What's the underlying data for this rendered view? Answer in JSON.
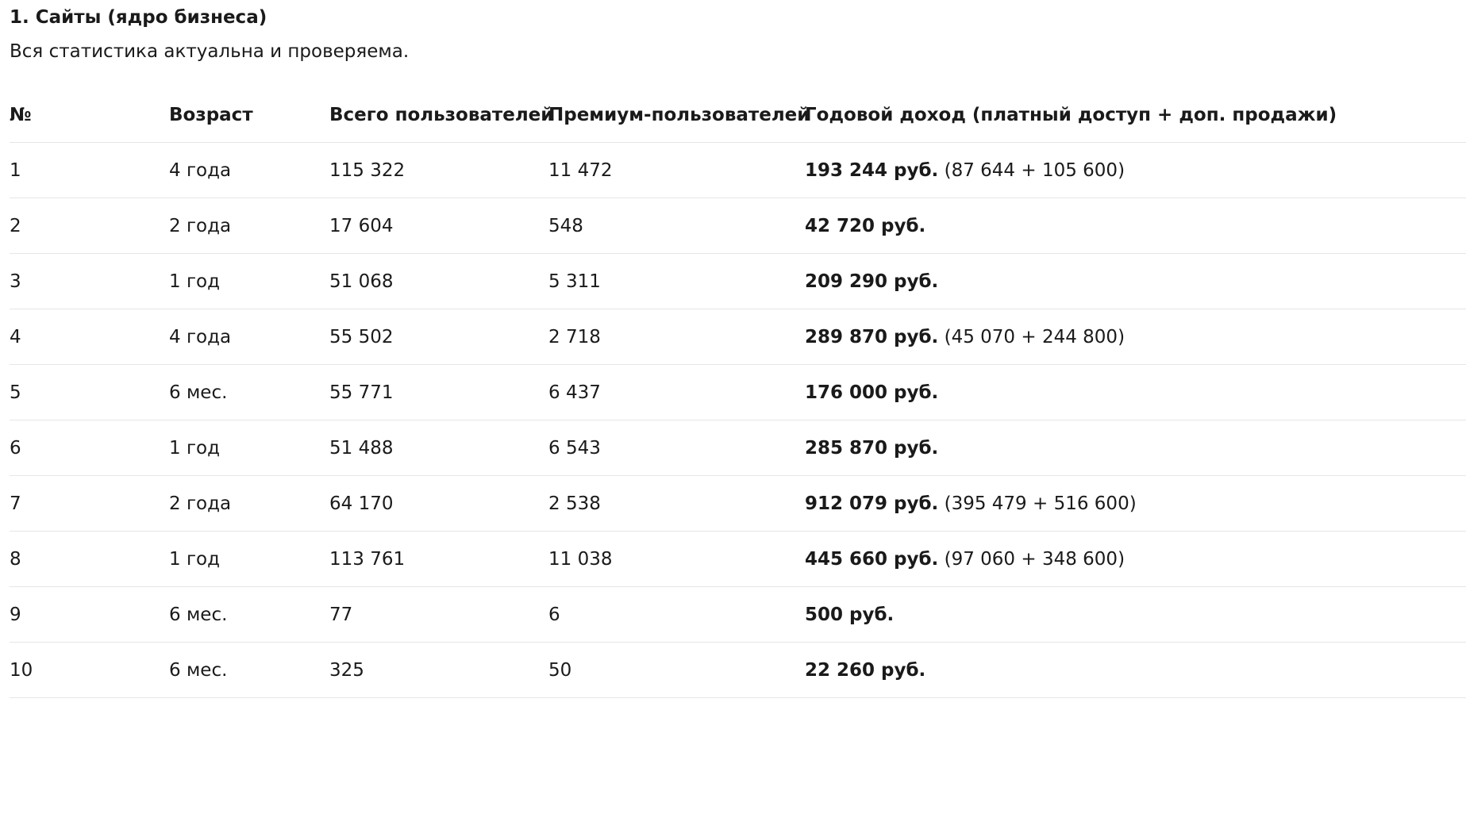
{
  "heading": "1. Сайты (ядро бизнеса)",
  "subtitle": "Вся статистика актуальна и проверяема.",
  "table": {
    "headers": [
      "№",
      "Возраст",
      "Всего пользователей",
      "Премиум-пользователей",
      "Годовой доход (платный доступ + доп. продажи)"
    ],
    "rows": [
      {
        "num": "1",
        "age": "4 года",
        "total": "115 322",
        "premium": "11 472",
        "revenue": "193 244 руб.",
        "breakdown": "(87 644 + 105 600)"
      },
      {
        "num": "2",
        "age": "2 года",
        "total": "17 604",
        "premium": "548",
        "revenue": "42 720 руб.",
        "breakdown": ""
      },
      {
        "num": "3",
        "age": "1 год",
        "total": "51 068",
        "premium": "5 311",
        "revenue": "209 290 руб.",
        "breakdown": ""
      },
      {
        "num": "4",
        "age": "4 года",
        "total": "55 502",
        "premium": "2 718",
        "revenue": "289 870 руб.",
        "breakdown": "(45 070 + 244 800)"
      },
      {
        "num": "5",
        "age": "6 мес.",
        "total": "55 771",
        "premium": "6 437",
        "revenue": "176 000 руб.",
        "breakdown": ""
      },
      {
        "num": "6",
        "age": "1 год",
        "total": "51 488",
        "premium": "6 543",
        "revenue": "285 870 руб.",
        "breakdown": ""
      },
      {
        "num": "7",
        "age": "2 года",
        "total": "64 170",
        "premium": "2 538",
        "revenue": "912 079 руб.",
        "breakdown": "(395 479 + 516 600)"
      },
      {
        "num": "8",
        "age": "1 год",
        "total": "113 761",
        "premium": "11 038",
        "revenue": "445 660 руб.",
        "breakdown": "(97 060 + 348 600)"
      },
      {
        "num": "9",
        "age": "6 мес.",
        "total": "77",
        "premium": "6",
        "revenue": "500 руб.",
        "breakdown": ""
      },
      {
        "num": "10",
        "age": "6 мес.",
        "total": "325",
        "premium": "50",
        "revenue": "22 260 руб.",
        "breakdown": ""
      }
    ]
  }
}
